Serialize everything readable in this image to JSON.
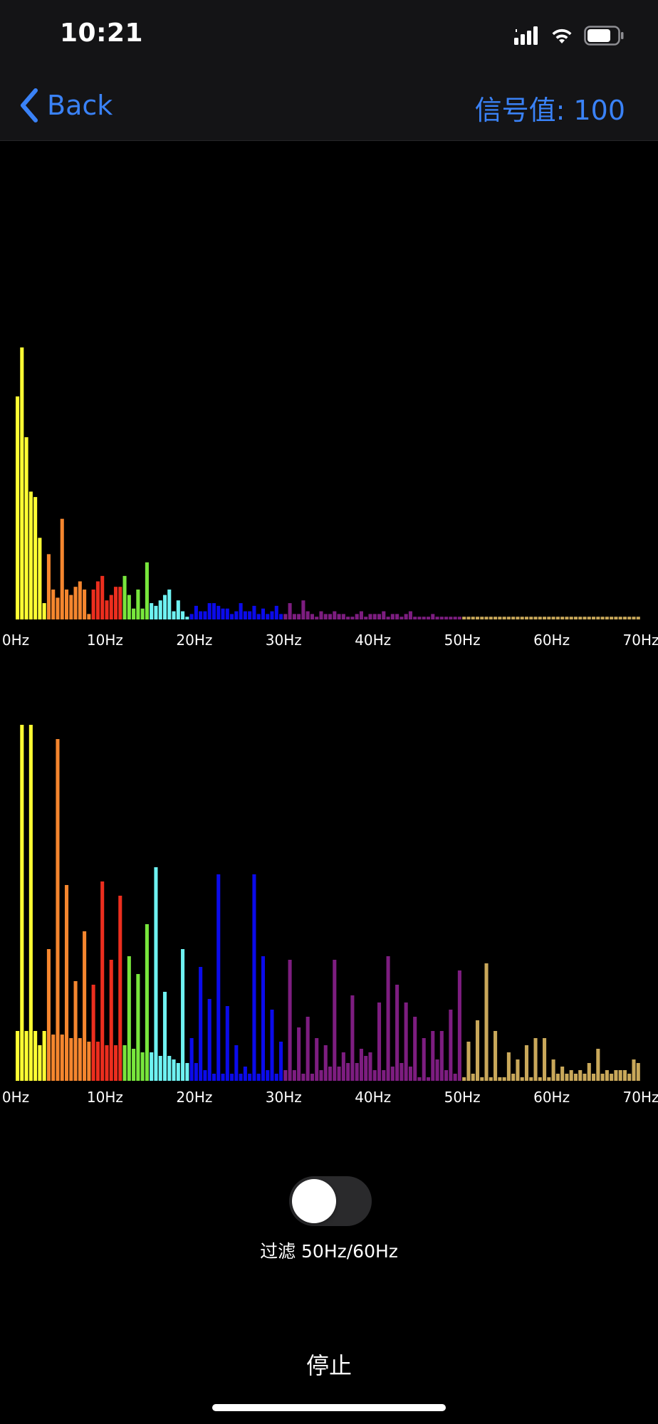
{
  "status_bar": {
    "time": "10:21"
  },
  "nav": {
    "back_label": "Back",
    "signal_label": "信号值: 100"
  },
  "colors": {
    "accent": "#3a82f7",
    "bands": [
      "#ffff33",
      "#f5862e",
      "#ec2e1e",
      "#78e63c",
      "#6ef2f2",
      "#0b0bea",
      "#7d1d80",
      "#c9a85a"
    ]
  },
  "chart_data": [
    {
      "type": "bar",
      "x_ticks": [
        "0Hz",
        "10Hz",
        "20Hz",
        "30Hz",
        "40Hz",
        "50Hz",
        "60Hz",
        "70Hz"
      ],
      "xlim": [
        0,
        70
      ],
      "ylim": [
        0,
        100
      ],
      "band_edges_hz": [
        0,
        3.6,
        8.3,
        11.9,
        14.8,
        19.6,
        29.9,
        49.9,
        70
      ],
      "values": [
        82,
        100,
        67,
        47,
        45,
        30,
        6,
        24,
        11,
        8,
        37,
        11,
        9,
        12,
        14,
        11,
        2,
        11,
        14,
        16,
        7,
        9,
        12,
        12,
        16,
        9,
        4,
        11,
        4,
        21,
        6,
        5,
        7,
        9,
        11,
        3,
        7,
        3,
        1,
        2,
        5,
        3,
        3,
        6,
        6,
        5,
        4,
        4,
        2,
        3,
        6,
        3,
        3,
        5,
        2,
        4,
        2,
        3,
        5,
        2,
        2,
        6,
        2,
        2,
        7,
        3,
        2,
        1,
        3,
        2,
        2,
        3,
        2,
        2,
        1,
        1,
        2,
        3,
        1,
        2,
        2,
        2,
        3,
        1,
        2,
        2,
        1,
        2,
        3,
        1,
        1,
        1,
        1,
        2,
        1,
        1,
        1,
        1,
        1,
        1,
        1,
        1,
        1,
        1,
        1,
        1,
        1,
        1,
        1,
        1,
        1,
        1,
        1,
        1,
        1,
        1,
        1,
        1,
        1,
        1,
        1,
        1,
        1,
        1,
        1,
        1,
        1,
        1,
        1,
        1,
        1,
        1,
        1,
        1,
        1,
        1,
        1,
        1,
        1,
        1
      ]
    },
    {
      "type": "bar",
      "x_ticks": [
        "0Hz",
        "10Hz",
        "20Hz",
        "30Hz",
        "40Hz",
        "50Hz",
        "60Hz",
        "70Hz"
      ],
      "xlim": [
        0,
        70
      ],
      "ylim": [
        0,
        100
      ],
      "band_edges_hz": [
        0,
        3.6,
        8.3,
        11.9,
        14.8,
        19.6,
        29.9,
        49.9,
        70
      ],
      "values": [
        14,
        100,
        14,
        100,
        14,
        10,
        14,
        37,
        13,
        96,
        13,
        55,
        12,
        28,
        12,
        42,
        11,
        27,
        11,
        56,
        10,
        34,
        10,
        52,
        10,
        35,
        9,
        30,
        8,
        44,
        8,
        60,
        7,
        25,
        7,
        6,
        5,
        37,
        5,
        12,
        5,
        32,
        3,
        23,
        2,
        58,
        2,
        21,
        2,
        10,
        2,
        4,
        2,
        58,
        2,
        35,
        3,
        20,
        2,
        11,
        3,
        34,
        3,
        15,
        2,
        18,
        2,
        12,
        3,
        10,
        4,
        34,
        4,
        8,
        5,
        24,
        5,
        9,
        7,
        8,
        3,
        22,
        3,
        35,
        4,
        27,
        5,
        22,
        4,
        18,
        1,
        12,
        1,
        14,
        6,
        14,
        3,
        20,
        2,
        31,
        1,
        11,
        2,
        17,
        1,
        33,
        1,
        14,
        1,
        1,
        8,
        2,
        6,
        1,
        10,
        1,
        12,
        1,
        12,
        1,
        6,
        2,
        4,
        2,
        3,
        2,
        3,
        2,
        5,
        2,
        9,
        2,
        3,
        2,
        3,
        3,
        3,
        2,
        6,
        5
      ]
    }
  ],
  "filter_toggle": {
    "label": "过滤 50Hz/60Hz",
    "on": false
  },
  "stop_button": {
    "label": "停止"
  }
}
